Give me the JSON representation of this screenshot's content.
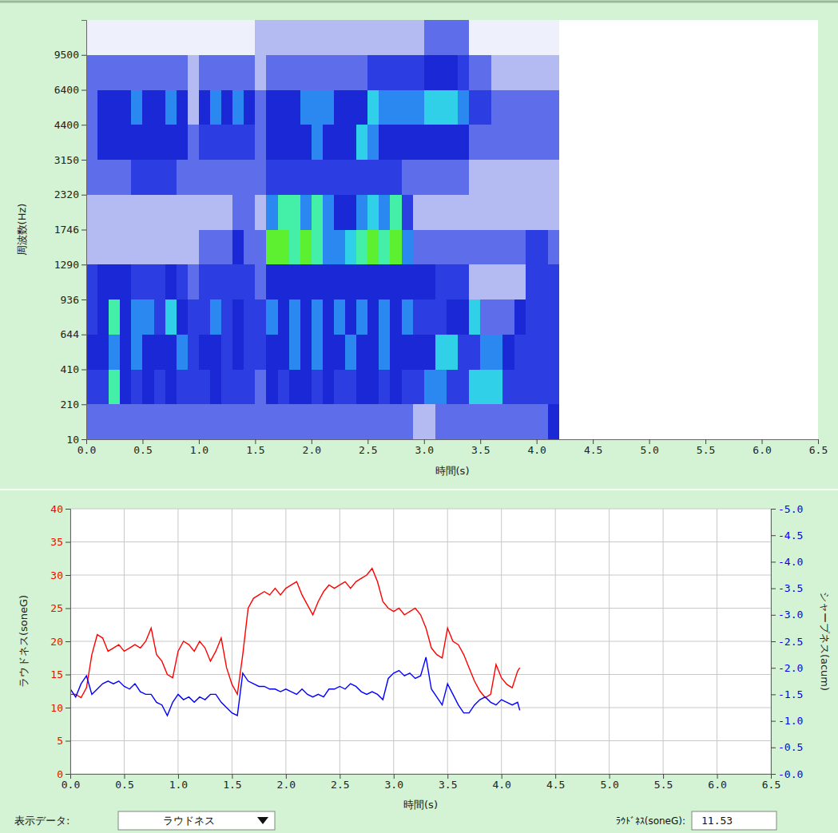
{
  "chart_data": [
    {
      "type": "heatmap",
      "xlabel": "時間(s)",
      "ylabel": "周波数(Hz)",
      "grid": false,
      "xlim": [
        0,
        6.5
      ],
      "xticks": [
        {
          "value": 0,
          "label": "0.0"
        },
        0.5,
        {
          "value": 1,
          "label": "1.0"
        },
        1.5,
        {
          "value": 2,
          "label": "2.0"
        },
        2.5,
        {
          "value": 3,
          "label": "3.0"
        },
        3.5,
        {
          "value": 4,
          "label": "4.0"
        },
        4.5,
        {
          "value": 5,
          "label": "5.0"
        },
        5.5,
        {
          "value": 6,
          "label": "6.0"
        },
        6.5
      ],
      "ylim": [
        10,
        15500
      ],
      "yticks": [
        10,
        210,
        410,
        644,
        936,
        1290,
        1746,
        2320,
        3150,
        4400,
        6400,
        9500
      ],
      "x_bins": [
        0,
        0.1,
        0.2,
        0.3,
        0.4,
        0.5,
        0.6,
        0.7,
        0.8,
        0.9,
        1,
        1.1,
        1.2,
        1.3,
        1.4,
        1.5,
        1.6,
        1.7,
        1.8,
        1.9,
        2,
        2.1,
        2.2,
        2.3,
        2.4,
        2.5,
        2.6,
        2.7,
        2.8,
        2.9,
        3,
        3.1,
        3.2,
        3.3,
        3.4,
        3.5,
        3.6,
        3.7,
        3.8,
        3.9,
        4,
        4.1,
        4.2
      ],
      "y_bins": [
        10,
        210,
        410,
        644,
        936,
        1290,
        1746,
        2320,
        3150,
        4400,
        6400,
        9500,
        15500
      ],
      "cells": [
        [
          3,
          3,
          3,
          3,
          3,
          3,
          3,
          3,
          3,
          3,
          3,
          3,
          3,
          3,
          3,
          3,
          3,
          3,
          3,
          3,
          3,
          3,
          3,
          3,
          3,
          3,
          3,
          3,
          3,
          2,
          2,
          3,
          3,
          3,
          3,
          3,
          3,
          3,
          3,
          3,
          3,
          5
        ],
        [
          4,
          4,
          8,
          5,
          4,
          5,
          4,
          5,
          4,
          4,
          4,
          5,
          4,
          4,
          4,
          3,
          5,
          4,
          5,
          5,
          4,
          5,
          4,
          4,
          5,
          5,
          4,
          5,
          4,
          4,
          6,
          6,
          4,
          4,
          7,
          7,
          7,
          4,
          4,
          4,
          4,
          4
        ],
        [
          5,
          5,
          6,
          5,
          6,
          5,
          5,
          5,
          6,
          4,
          5,
          5,
          4,
          5,
          4,
          4,
          5,
          5,
          6,
          5,
          6,
          5,
          5,
          6,
          5,
          5,
          6,
          5,
          5,
          5,
          5,
          7,
          7,
          4,
          4,
          6,
          6,
          5,
          4,
          4,
          4,
          4
        ],
        [
          4,
          5,
          8,
          5,
          6,
          6,
          4,
          7,
          5,
          4,
          4,
          6,
          4,
          5,
          4,
          4,
          6,
          5,
          6,
          5,
          6,
          5,
          6,
          5,
          6,
          5,
          6,
          5,
          6,
          4,
          4,
          4,
          5,
          5,
          7,
          3,
          3,
          3,
          5,
          4,
          4,
          4
        ],
        [
          4,
          5,
          5,
          5,
          4,
          4,
          4,
          5,
          4,
          3,
          4,
          4,
          4,
          4,
          4,
          3,
          5,
          5,
          5,
          5,
          5,
          5,
          5,
          5,
          5,
          5,
          5,
          5,
          5,
          5,
          5,
          4,
          4,
          4,
          2,
          2,
          2,
          2,
          2,
          4,
          4,
          4
        ],
        [
          2,
          2,
          2,
          2,
          2,
          2,
          2,
          2,
          2,
          2,
          3,
          3,
          3,
          5,
          3,
          3,
          9,
          9,
          8,
          9,
          8,
          6,
          6,
          7,
          8,
          9,
          8,
          9,
          6,
          3,
          3,
          3,
          3,
          3,
          3,
          3,
          3,
          3,
          3,
          4,
          4,
          3
        ],
        [
          2,
          2,
          2,
          2,
          2,
          2,
          2,
          2,
          2,
          2,
          2,
          2,
          2,
          3,
          3,
          2,
          6,
          8,
          8,
          6,
          8,
          6,
          5,
          5,
          6,
          7,
          6,
          8,
          4,
          2,
          2,
          2,
          2,
          2,
          2,
          2,
          2,
          2,
          2,
          2,
          2,
          2
        ],
        [
          3,
          3,
          3,
          3,
          4,
          4,
          4,
          4,
          3,
          3,
          3,
          3,
          3,
          3,
          3,
          3,
          4,
          4,
          4,
          4,
          4,
          4,
          4,
          4,
          4,
          4,
          4,
          4,
          3,
          3,
          3,
          3,
          3,
          3,
          2,
          2,
          2,
          2,
          2,
          2,
          2,
          2
        ],
        [
          3,
          5,
          5,
          5,
          5,
          5,
          5,
          5,
          5,
          3,
          4,
          4,
          4,
          4,
          4,
          3,
          5,
          5,
          5,
          5,
          6,
          5,
          5,
          5,
          7,
          6,
          5,
          5,
          5,
          5,
          5,
          5,
          5,
          5,
          3,
          3,
          3,
          3,
          3,
          3,
          3,
          3
        ],
        [
          3,
          5,
          5,
          5,
          6,
          5,
          5,
          6,
          5,
          2,
          5,
          6,
          5,
          6,
          5,
          3,
          5,
          5,
          5,
          6,
          6,
          6,
          5,
          5,
          5,
          7,
          6,
          6,
          6,
          6,
          7,
          7,
          7,
          6,
          4,
          4,
          3,
          3,
          3,
          3,
          3,
          3
        ],
        [
          3,
          3,
          3,
          3,
          3,
          3,
          3,
          3,
          3,
          2,
          3,
          3,
          3,
          3,
          3,
          2,
          3,
          3,
          3,
          3,
          3,
          3,
          3,
          3,
          3,
          4,
          4,
          4,
          4,
          4,
          5,
          5,
          5,
          4,
          3,
          3,
          2,
          2,
          2,
          2,
          2,
          2
        ],
        [
          1,
          1,
          1,
          1,
          1,
          1,
          1,
          1,
          1,
          1,
          1,
          1,
          1,
          1,
          1,
          2,
          2,
          2,
          2,
          2,
          2,
          2,
          2,
          2,
          2,
          2,
          2,
          2,
          2,
          2,
          3,
          3,
          3,
          3,
          1,
          1,
          1,
          1,
          1,
          1,
          1,
          1
        ]
      ]
    },
    {
      "type": "line",
      "xlabel": "時間(s)",
      "ylabel": "ラウドネス(soneG)",
      "y2label": "シャープネス(acum)",
      "grid": true,
      "xlim": [
        0,
        6.5
      ],
      "xticks": [
        {
          "value": 0,
          "label": "0.0"
        },
        0.5,
        {
          "value": 1,
          "label": "1.0"
        },
        1.5,
        {
          "value": 2,
          "label": "2.0"
        },
        2.5,
        {
          "value": 3,
          "label": "3.0"
        },
        3.5,
        {
          "value": 4,
          "label": "4.0"
        },
        4.5,
        {
          "value": 5,
          "label": "5.0"
        },
        5.5,
        {
          "value": 6,
          "label": "6.0"
        },
        6.5
      ],
      "ylim": [
        0,
        40
      ],
      "yticks": [
        0,
        5,
        10,
        15,
        20,
        25,
        30,
        35,
        40
      ],
      "y2lim": [
        0,
        -5
      ],
      "y2ticks": [
        {
          "value": 0,
          "label": "-0.0"
        },
        -0.5,
        {
          "value": -1,
          "label": "-1.0"
        },
        -1.5,
        {
          "value": -2,
          "label": "-2.0"
        },
        -2.5,
        {
          "value": -3,
          "label": "-3.0"
        },
        -3.5,
        {
          "value": -4,
          "label": "-4.0"
        },
        -4.5,
        {
          "value": -5,
          "label": "-5.0"
        }
      ],
      "x": [
        0,
        0.05,
        0.1,
        0.15,
        0.2,
        0.25,
        0.3,
        0.35,
        0.4,
        0.45,
        0.5,
        0.55,
        0.6,
        0.65,
        0.7,
        0.75,
        0.8,
        0.85,
        0.9,
        0.95,
        1,
        1.05,
        1.1,
        1.15,
        1.2,
        1.25,
        1.3,
        1.35,
        1.4,
        1.45,
        1.5,
        1.55,
        1.6,
        1.65,
        1.7,
        1.75,
        1.8,
        1.85,
        1.9,
        1.95,
        2,
        2.05,
        2.1,
        2.15,
        2.2,
        2.25,
        2.3,
        2.35,
        2.4,
        2.45,
        2.5,
        2.55,
        2.6,
        2.65,
        2.7,
        2.75,
        2.8,
        2.85,
        2.9,
        2.95,
        3,
        3.05,
        3.1,
        3.15,
        3.2,
        3.25,
        3.3,
        3.35,
        3.4,
        3.45,
        3.5,
        3.55,
        3.6,
        3.65,
        3.7,
        3.75,
        3.8,
        3.85,
        3.9,
        3.95,
        4,
        4.05,
        4.1,
        4.15,
        4.17
      ],
      "series": [
        {
          "color": "#ff0000",
          "values": [
            12,
            12,
            11.5,
            13,
            18,
            21,
            20.5,
            18.5,
            19,
            19.5,
            18.5,
            19,
            19.5,
            19,
            20,
            22,
            18,
            17,
            15,
            14.5,
            18.5,
            20,
            19.5,
            18.5,
            20,
            19,
            17,
            18.5,
            20.5,
            16,
            13.5,
            12,
            18,
            25,
            26.5,
            27,
            27.5,
            27,
            28,
            27,
            28,
            28.5,
            29,
            27,
            25.5,
            24,
            26,
            27.5,
            28.5,
            28,
            28.5,
            29,
            28,
            29,
            29.5,
            30,
            31,
            29,
            26,
            25,
            24.5,
            25,
            24,
            24.5,
            25,
            24,
            22,
            19,
            18,
            17.5,
            22,
            20,
            19.5,
            18,
            16,
            14,
            12.5,
            11.5,
            12,
            16.5,
            14.5,
            13.5,
            13,
            15.5,
            16
          ]
        },
        {
          "color": "#0000ff",
          "axis": "y2",
          "values": [
            -1.6,
            -1.45,
            -1.7,
            -1.85,
            -1.5,
            -1.6,
            -1.7,
            -1.75,
            -1.7,
            -1.75,
            -1.65,
            -1.6,
            -1.7,
            -1.55,
            -1.5,
            -1.5,
            -1.35,
            -1.3,
            -1.1,
            -1.35,
            -1.5,
            -1.4,
            -1.45,
            -1.35,
            -1.45,
            -1.4,
            -1.5,
            -1.5,
            -1.35,
            -1.25,
            -1.15,
            -1.1,
            -1.9,
            -1.75,
            -1.7,
            -1.65,
            -1.65,
            -1.6,
            -1.6,
            -1.55,
            -1.6,
            -1.55,
            -1.5,
            -1.6,
            -1.5,
            -1.45,
            -1.5,
            -1.45,
            -1.6,
            -1.6,
            -1.65,
            -1.6,
            -1.7,
            -1.65,
            -1.55,
            -1.5,
            -1.55,
            -1.5,
            -1.4,
            -1.8,
            -1.9,
            -1.95,
            -1.85,
            -1.9,
            -1.8,
            -1.85,
            -2.2,
            -1.6,
            -1.45,
            -1.3,
            -1.7,
            -1.5,
            -1.3,
            -1.15,
            -1.15,
            -1.3,
            -1.4,
            -1.45,
            -1.35,
            -1.3,
            -1.4,
            -1.35,
            -1.3,
            -1.35,
            -1.2
          ]
        }
      ]
    }
  ],
  "controls": {
    "display_label": "表示データ:",
    "display_value": "ラウドネス",
    "readout_label": "ﾗｳﾄﾞﾈｽ(soneG):",
    "readout_value": 11.53
  }
}
